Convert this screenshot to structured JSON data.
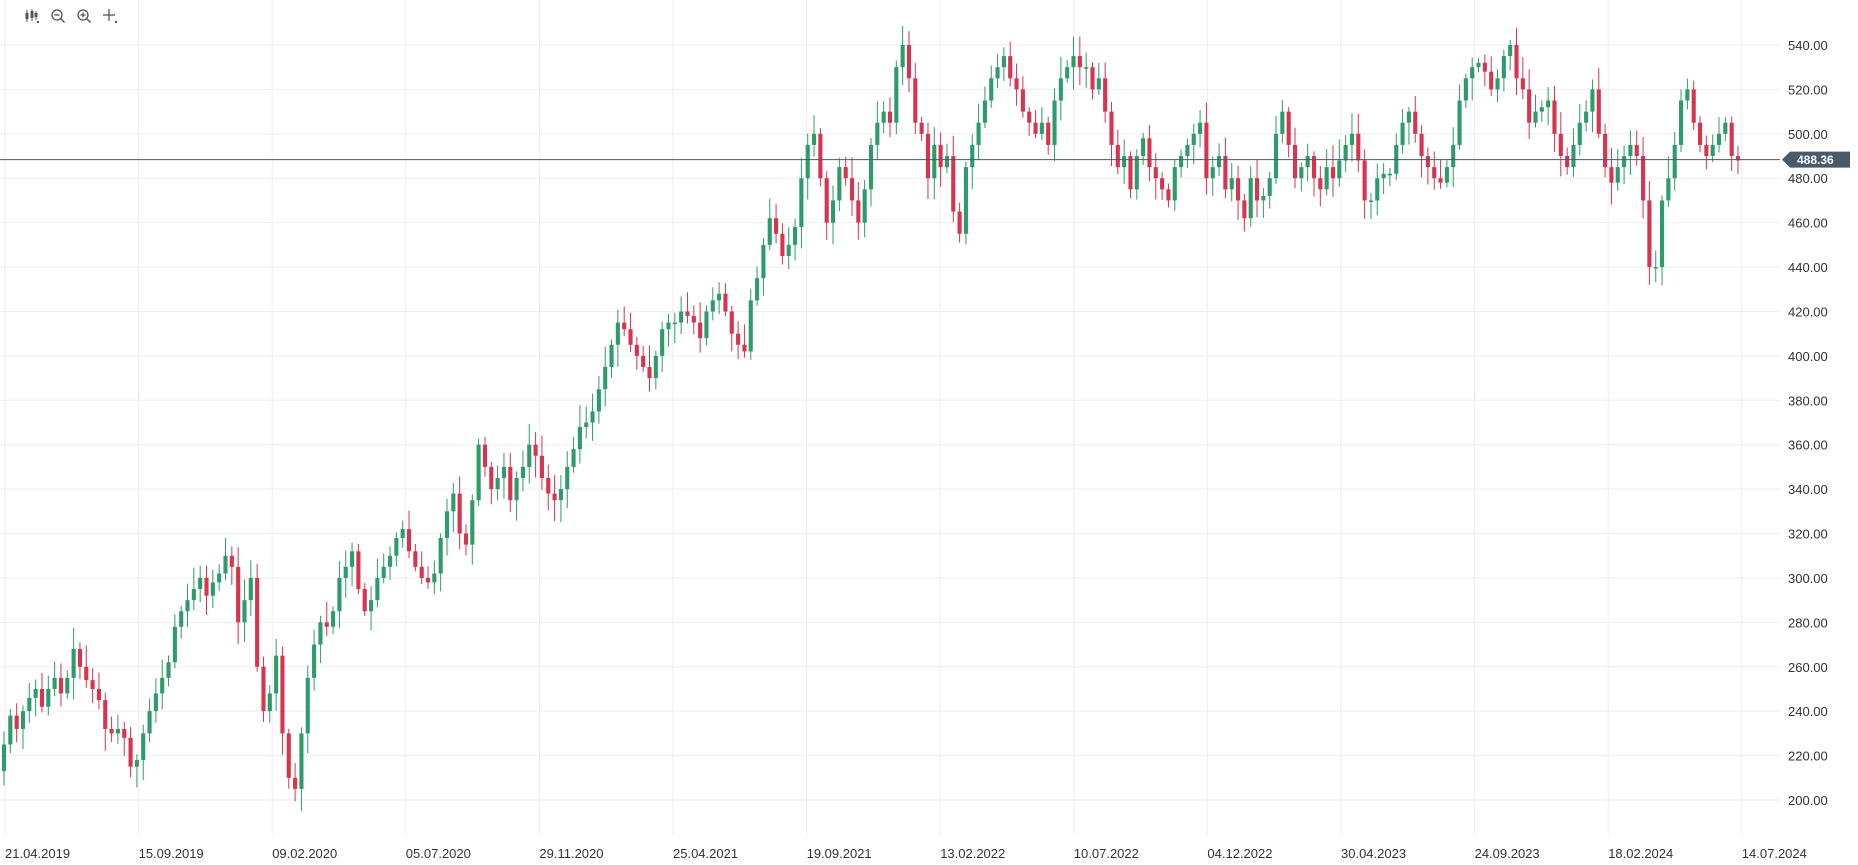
{
  "toolbar": {
    "tools": [
      {
        "name": "candles-type-icon"
      },
      {
        "name": "zoom-out-icon"
      },
      {
        "name": "zoom-in-icon"
      },
      {
        "name": "crosshair-icon"
      }
    ]
  },
  "colors": {
    "up": "#2e9c6a",
    "down": "#d8344f",
    "grid": "#eeeeee",
    "price_line": "#4a5a6a",
    "price_label_bg": "#4a5a6a"
  },
  "chart_data": {
    "type": "candlestick",
    "title": "",
    "xlabel": "",
    "ylabel": "",
    "ylim": [
      180,
      550
    ],
    "y_ticks": [
      "200.00",
      "220.00",
      "240.00",
      "260.00",
      "280.00",
      "300.00",
      "320.00",
      "340.00",
      "360.00",
      "380.00",
      "400.00",
      "420.00",
      "440.00",
      "460.00",
      "480.00",
      "500.00",
      "520.00",
      "540.00"
    ],
    "x_ticks": [
      "21.04.2019",
      "15.09.2019",
      "09.02.2020",
      "05.07.2020",
      "29.11.2020",
      "25.04.2021",
      "19.09.2021",
      "13.02.2022",
      "10.07.2022",
      "04.12.2022",
      "30.04.2023",
      "24.09.2023",
      "18.02.2024",
      "14.07.2024"
    ],
    "last_price": 488.36,
    "last_price_label": "488.36",
    "grid": true,
    "series": [
      {
        "closes": [
          225,
          238,
          232,
          240,
          246,
          250,
          242,
          250,
          255,
          248,
          255,
          268,
          260,
          254,
          250,
          245,
          232,
          230,
          232,
          228,
          215,
          218,
          230,
          240,
          248,
          255,
          262,
          278,
          285,
          290,
          295,
          300,
          292,
          298,
          302,
          310,
          305,
          280,
          290,
          300,
          260,
          240,
          248,
          265,
          230,
          210,
          205,
          230,
          255,
          270,
          280,
          278,
          285,
          300,
          305,
          312,
          295,
          285,
          290,
          300,
          305,
          310,
          318,
          322,
          312,
          305,
          300,
          298,
          302,
          318,
          330,
          338,
          320,
          315,
          335,
          360,
          350,
          340,
          345,
          350,
          335,
          345,
          350,
          360,
          355,
          345,
          338,
          335,
          340,
          350,
          358,
          368,
          370,
          375,
          385,
          395,
          405,
          415,
          412,
          405,
          400,
          395,
          390,
          400,
          412,
          415,
          415,
          420,
          418,
          415,
          408,
          420,
          425,
          428,
          420,
          410,
          405,
          402,
          425,
          435,
          450,
          462,
          455,
          445,
          450,
          458,
          480,
          495,
          500,
          480,
          460,
          470,
          485,
          480,
          470,
          460,
          475,
          495,
          505,
          510,
          505,
          530,
          540,
          525,
          505,
          500,
          480,
          495,
          485,
          490,
          465,
          455,
          485,
          495,
          505,
          515,
          525,
          530,
          535,
          525,
          520,
          510,
          505,
          500,
          505,
          495,
          515,
          525,
          530,
          535,
          530,
          530,
          520,
          525,
          510,
          495,
          485,
          490,
          475,
          490,
          498,
          485,
          480,
          475,
          470,
          485,
          490,
          495,
          500,
          505,
          480,
          485,
          490,
          475,
          480,
          470,
          462,
          480,
          470,
          472,
          480,
          500,
          510,
          495,
          480,
          485,
          490,
          480,
          475,
          485,
          480,
          488,
          495,
          500,
          488,
          470,
          470,
          480,
          482,
          482,
          495,
          505,
          510,
          500,
          490,
          485,
          480,
          478,
          485,
          495,
          515,
          525,
          530,
          532,
          528,
          520,
          525,
          535,
          540,
          525,
          520,
          505,
          510,
          512,
          515,
          500,
          490,
          485,
          495,
          505,
          510,
          520,
          500,
          485,
          478,
          485,
          490,
          495,
          490,
          470,
          440,
          440,
          470,
          480,
          495,
          515,
          520,
          505,
          495,
          490,
          495,
          500,
          505,
          490,
          488
        ],
        "colors_up": "#2e9c6a",
        "colors_down": "#d8344f"
      }
    ]
  }
}
